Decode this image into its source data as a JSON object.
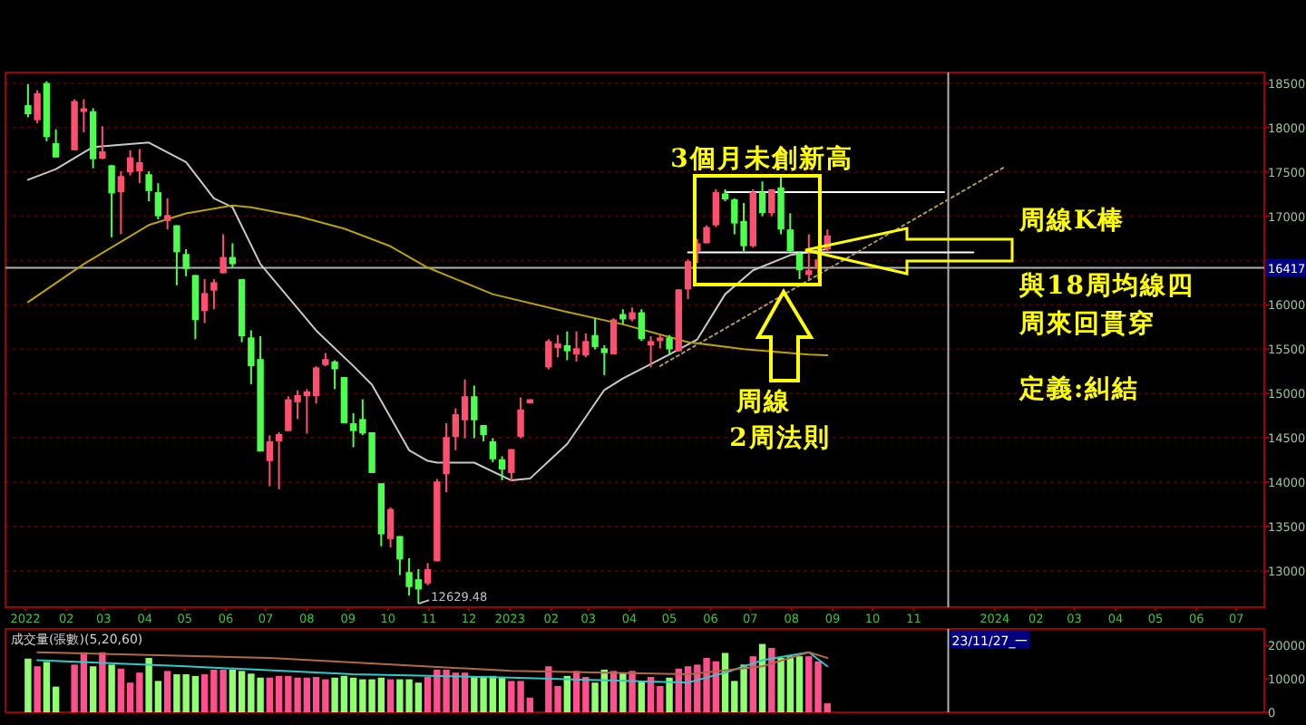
{
  "chart_data": [
    {
      "type": "candlestick",
      "x": [
        "2022-01-03",
        "2022-01-10",
        "2022-01-17",
        "2022-01-24",
        "2022-02-07",
        "2022-02-14",
        "2022-02-21",
        "2022-02-28",
        "2022-03-07",
        "2022-03-14",
        "2022-03-21",
        "2022-03-28",
        "2022-04-04",
        "2022-04-11",
        "2022-04-18",
        "2022-04-25",
        "2022-05-02",
        "2022-05-09",
        "2022-05-16",
        "2022-05-23",
        "2022-05-30",
        "2022-06-06",
        "2022-06-13",
        "2022-06-20",
        "2022-06-27",
        "2022-07-04",
        "2022-07-11",
        "2022-07-18",
        "2022-07-25",
        "2022-08-01",
        "2022-08-08",
        "2022-08-15",
        "2022-08-22",
        "2022-08-29",
        "2022-09-05",
        "2022-09-12",
        "2022-09-19",
        "2022-09-26",
        "2022-10-03",
        "2022-10-10",
        "2022-10-17",
        "2022-10-24",
        "2022-10-31",
        "2022-11-07",
        "2022-11-14",
        "2022-11-21",
        "2022-11-28",
        "2022-12-05",
        "2022-12-12",
        "2022-12-19",
        "2022-12-26",
        "2023-01-02",
        "2023-01-09",
        "2023-01-16",
        "2023-01-30",
        "2023-02-06",
        "2023-02-13",
        "2023-02-20",
        "2023-02-27",
        "2023-03-06",
        "2023-03-13",
        "2023-03-20",
        "2023-03-27",
        "2023-04-03",
        "2023-04-10",
        "2023-04-17",
        "2023-04-24",
        "2023-05-01",
        "2023-05-08",
        "2023-05-15",
        "2023-05-22",
        "2023-05-29",
        "2023-06-05",
        "2023-06-12",
        "2023-06-19",
        "2023-06-26",
        "2023-07-03",
        "2023-07-10",
        "2023-07-17",
        "2023-07-24",
        "2023-07-31",
        "2023-08-07",
        "2023-08-14",
        "2023-08-21",
        "2023-08-28"
      ],
      "ohlc": [
        [
          18251,
          18488,
          18115,
          18149
        ],
        [
          18082,
          18420,
          18048,
          18386
        ],
        [
          18501,
          18521,
          17845,
          17892
        ],
        [
          17824,
          17980,
          17662,
          17662
        ],
        [
          17743,
          18318,
          17743,
          18298
        ],
        [
          18176,
          18318,
          17946,
          18217
        ],
        [
          18183,
          18217,
          17540,
          17642
        ],
        [
          17649,
          18014,
          17642,
          17730
        ],
        [
          17574,
          17574,
          16762,
          17256
        ],
        [
          17270,
          17506,
          16796,
          17452
        ],
        [
          17493,
          17743,
          17459,
          17662
        ],
        [
          17506,
          17757,
          17371,
          17608
        ],
        [
          17473,
          17506,
          17168,
          17283
        ],
        [
          17270,
          17371,
          16965,
          16999
        ],
        [
          16945,
          17202,
          16850,
          17012
        ],
        [
          16897,
          16897,
          16221,
          16593
        ],
        [
          16573,
          16627,
          16322,
          16404
        ],
        [
          16336,
          16336,
          15612,
          15828
        ],
        [
          15930,
          16289,
          15794,
          16133
        ],
        [
          16160,
          16289,
          15950,
          16255
        ],
        [
          16356,
          16796,
          16356,
          16539
        ],
        [
          16539,
          16694,
          16424,
          16458
        ],
        [
          16289,
          16289,
          15578,
          15646
        ],
        [
          15632,
          15713,
          15104,
          15307
        ],
        [
          15388,
          15646,
          14346,
          14346
        ],
        [
          14238,
          14529,
          13954,
          14461
        ],
        [
          14461,
          14563,
          13920,
          14542
        ],
        [
          14576,
          14969,
          14576,
          14935
        ],
        [
          14901,
          15036,
          14712,
          14982
        ],
        [
          14969,
          15050,
          14549,
          15023
        ],
        [
          14969,
          15307,
          14888,
          15294
        ],
        [
          15321,
          15456,
          15307,
          15388
        ],
        [
          15361,
          15375,
          15050,
          15273
        ],
        [
          15185,
          15185,
          14664,
          14664
        ],
        [
          14664,
          14779,
          14394,
          14576
        ],
        [
          14712,
          14935,
          14529,
          14549
        ],
        [
          14563,
          14563,
          14103,
          14103
        ],
        [
          13988,
          13988,
          13277,
          13412
        ],
        [
          13358,
          13717,
          13263,
          13697
        ],
        [
          13392,
          13392,
          12952,
          13128
        ],
        [
          12986,
          13142,
          12722,
          12817
        ],
        [
          12905,
          13020,
          12629.48,
          12790
        ],
        [
          12858,
          13088,
          12837,
          13020
        ],
        [
          13108,
          14035,
          13108,
          14008
        ],
        [
          14089,
          14664,
          13886,
          14509
        ],
        [
          14509,
          14833,
          14360,
          14766
        ],
        [
          14698,
          15158,
          14495,
          14969
        ],
        [
          14969,
          15090,
          14495,
          14698
        ],
        [
          14644,
          14644,
          14461,
          14529
        ],
        [
          14461,
          14495,
          14224,
          14258
        ],
        [
          14258,
          14292,
          14021,
          14143
        ],
        [
          14103,
          14373,
          14008,
          14373
        ],
        [
          14509,
          14955,
          14495,
          14820
        ],
        [
          14888,
          14935,
          14888,
          14935
        ],
        [
          15294,
          15612,
          15273,
          15591
        ],
        [
          15510,
          15659,
          15409,
          15564
        ],
        [
          15544,
          15700,
          15375,
          15476
        ],
        [
          15442,
          15700,
          15361,
          15510
        ],
        [
          15429,
          15679,
          15409,
          15591
        ],
        [
          15659,
          15848,
          15497,
          15524
        ],
        [
          15510,
          15544,
          15206,
          15456
        ],
        [
          15442,
          15848,
          15442,
          15835
        ],
        [
          15896,
          15950,
          15781,
          15835
        ],
        [
          15835,
          15970,
          15815,
          15916
        ],
        [
          15916,
          15950,
          15591,
          15612
        ],
        [
          15544,
          15646,
          15294,
          15591
        ],
        [
          15591,
          15659,
          15510,
          15632
        ],
        [
          15632,
          15659,
          15442,
          15497
        ],
        [
          15476,
          16174,
          15476,
          16174
        ],
        [
          16174,
          16512,
          16065,
          16492
        ],
        [
          16607,
          16742,
          16471,
          16694
        ],
        [
          16694,
          16897,
          16694,
          16877
        ],
        [
          16897,
          17304,
          16877,
          17270
        ],
        [
          17256,
          17304,
          17168,
          17189
        ],
        [
          17189,
          17202,
          16796,
          16917
        ],
        [
          16945,
          17148,
          16606,
          16661
        ],
        [
          16661,
          17304,
          16647,
          17270
        ],
        [
          17270,
          17391,
          16999,
          17033
        ],
        [
          17033,
          17304,
          16999,
          17304
        ],
        [
          17324,
          17439,
          16796,
          16850
        ],
        [
          16850,
          17033,
          16593,
          16606
        ],
        [
          16579,
          16606,
          16289,
          16390
        ],
        [
          16336,
          16796,
          16289,
          16390
        ],
        [
          16404,
          16661,
          16289,
          16512
        ],
        [
          16627,
          16850,
          16606,
          16782
        ]
      ],
      "colors": [
        "#4dff4d",
        "#ff4f6f",
        "#4dff4d",
        "#4dff4d",
        "#ff4f6f",
        "#ff4f6f",
        "#4dff4d",
        "#ff4f6f",
        "#4dff4d",
        "#ff4f6f",
        "#ff4f6f",
        "#ff4f6f",
        "#4dff4d",
        "#4dff4d",
        "#ff4f6f",
        "#4dff4d",
        "#4dff4d",
        "#4dff4d",
        "#ff4f6f",
        "#ff4f6f",
        "#ff4f6f",
        "#4dff4d",
        "#4dff4d",
        "#4dff4d",
        "#4dff4d",
        "#ff4f6f",
        "#ff4f6f",
        "#ff4f6f",
        "#ff4f6f",
        "#ff4f6f",
        "#ff4f6f",
        "#ff4f6f",
        "#4dff4d",
        "#4dff4d",
        "#4dff4d",
        "#4dff4d",
        "#4dff4d",
        "#4dff4d",
        "#ff4f6f",
        "#4dff4d",
        "#4dff4d",
        "#4dff4d",
        "#ff4f6f",
        "#ff4f6f",
        "#ff4f6f",
        "#ff4f6f",
        "#ff4f6f",
        "#4dff4d",
        "#4dff4d",
        "#4dff4d",
        "#4dff4d",
        "#ff4f6f",
        "#ff4f6f",
        "#ff4f6f",
        "#ff4f6f",
        "#ff4f6f",
        "#4dff4d",
        "#ff4f6f",
        "#ff4f6f",
        "#4dff4d",
        "#4dff4d",
        "#ff4f6f",
        "#4dff4d",
        "#ff4f6f",
        "#4dff4d",
        "#ff4f6f",
        "#ff4f6f",
        "#4dff4d",
        "#ff4f6f",
        "#ff4f6f",
        "#ff4f6f",
        "#ff4f6f",
        "#ff4f6f",
        "#4dff4d",
        "#4dff4d",
        "#4dff4d",
        "#ff4f6f",
        "#4dff4d",
        "#ff4f6f",
        "#4dff4d",
        "#4dff4d",
        "#4dff4d",
        "#ff4f6f",
        "#ff4f6f",
        "#ff4f6f"
      ],
      "series": [
        {
          "type": "line",
          "color": "#c8c8c8",
          "x": [
            "2022-01-03",
            "2022-01-24",
            "2022-02-21",
            "2022-04-04",
            "2022-05-02",
            "2022-05-23",
            "2022-06-06",
            "2022-06-27",
            "2022-08-08",
            "2022-09-05",
            "2022-09-19",
            "2022-10-17",
            "2022-10-31",
            "2022-11-07",
            "2022-12-05",
            "2023-01-02",
            "2023-01-16",
            "2023-02-13",
            "2023-03-13",
            "2023-03-27",
            "2023-05-01",
            "2023-05-22",
            "2023-06-12",
            "2023-07-03",
            "2023-07-31",
            "2023-08-28"
          ],
          "values": [
            17410,
            17530,
            17780,
            17830,
            17610,
            17200,
            17100,
            16460,
            15710,
            15310,
            15100,
            14360,
            14240,
            14220,
            14220,
            14020,
            14040,
            14430,
            15040,
            15170,
            15440,
            15610,
            16120,
            16390,
            16560,
            16630
          ]
        },
        {
          "type": "line",
          "color": "#b8a400",
          "x": [
            "2022-01-03",
            "2022-02-14",
            "2022-04-04",
            "2022-05-02",
            "2022-06-06",
            "2022-06-20",
            "2022-07-25",
            "2022-08-29",
            "2022-10-03",
            "2022-10-31",
            "2022-12-19",
            "2023-02-13",
            "2023-03-27",
            "2023-05-15",
            "2023-06-26",
            "2023-08-14",
            "2023-08-28"
          ],
          "values": [
            16030,
            16460,
            16900,
            17030,
            17120,
            17100,
            17000,
            16860,
            16660,
            16420,
            16120,
            15920,
            15780,
            15580,
            15500,
            15440,
            15430
          ]
        },
        {
          "type": "line",
          "color": "#ffffff",
          "x": [
            "2023-06-12",
            "2023-11-24"
          ],
          "values": [
            17270,
            17270
          ]
        },
        {
          "type": "line",
          "color": "#ffffff",
          "x": [
            "2023-05-15",
            "2023-12-16"
          ],
          "values": [
            16590,
            16590
          ]
        },
        {
          "type": "line",
          "color": "#a89860",
          "line_style": "dotted",
          "x": [
            "2023-04-24",
            "2024-01-08"
          ],
          "values": [
            15310,
            17550
          ]
        }
      ],
      "xlim": [
        "2021-12-17",
        "2024-07-22"
      ],
      "xticks": [
        {
          "value": "2022-01-01",
          "label": "2022"
        },
        {
          "value": "2022-02-01",
          "label": "02"
        },
        {
          "value": "2022-03-01",
          "label": "03"
        },
        {
          "value": "2022-04-01",
          "label": "04"
        },
        {
          "value": "2022-05-01",
          "label": "05"
        },
        {
          "value": "2022-06-01",
          "label": "06"
        },
        {
          "value": "2022-07-01",
          "label": "07"
        },
        {
          "value": "2022-08-01",
          "label": "08"
        },
        {
          "value": "2022-09-01",
          "label": "09"
        },
        {
          "value": "2022-10-01",
          "label": "10"
        },
        {
          "value": "2022-11-01",
          "label": "11"
        },
        {
          "value": "2022-12-01",
          "label": "12"
        },
        {
          "value": "2023-01-01",
          "label": "2023"
        },
        {
          "value": "2023-02-01",
          "label": "02"
        },
        {
          "value": "2023-03-01",
          "label": "03"
        },
        {
          "value": "2023-04-01",
          "label": "04"
        },
        {
          "value": "2023-05-01",
          "label": "05"
        },
        {
          "value": "2023-06-01",
          "label": "06"
        },
        {
          "value": "2023-07-01",
          "label": "07"
        },
        {
          "value": "2023-08-01",
          "label": "08"
        },
        {
          "value": "2023-09-01",
          "label": "09"
        },
        {
          "value": "2023-10-01",
          "label": "10"
        },
        {
          "value": "2023-11-01",
          "label": "11"
        },
        {
          "value": "2024-01-01",
          "label": "2024"
        },
        {
          "value": "2024-02-01",
          "label": "02"
        },
        {
          "value": "2024-03-01",
          "label": "03"
        },
        {
          "value": "2024-04-01",
          "label": "04"
        },
        {
          "value": "2024-05-01",
          "label": "05"
        },
        {
          "value": "2024-06-01",
          "label": "06"
        },
        {
          "value": "2024-07-01",
          "label": "07"
        }
      ],
      "ylim": [
        12590,
        18620
      ],
      "yticks": [
        13000,
        13500,
        14000,
        14500,
        15000,
        15500,
        16000,
        {
          "value": 16500,
          "label": null
        },
        17000,
        17500,
        18000,
        18500
      ],
      "tick_labels": "xy",
      "grid": "y",
      "ref_lines": [
        {
          "axis": "y",
          "value": 16417,
          "label": "16417",
          "color": "#b0b0b0"
        },
        {
          "axis": "x",
          "value": "2023-11-27",
          "label": "23/11/27_一",
          "color": "#b0b0b0"
        }
      ],
      "annotations": [
        "3個月未創新高",
        "周線",
        "2周法則",
        "周線K棒",
        "與18周均線四",
        "周來回貫穿",
        "定義:糾結",
        "12629.48"
      ]
    },
    {
      "type": "bar",
      "title": "成交量(張數)(5,20,60)",
      "x": [
        "2022-01-03",
        "2022-01-10",
        "2022-01-17",
        "2022-01-24",
        "2022-02-07",
        "2022-02-14",
        "2022-02-21",
        "2022-02-28",
        "2022-03-07",
        "2022-03-14",
        "2022-03-21",
        "2022-03-28",
        "2022-04-04",
        "2022-04-11",
        "2022-04-18",
        "2022-04-25",
        "2022-05-02",
        "2022-05-09",
        "2022-05-16",
        "2022-05-23",
        "2022-05-30",
        "2022-06-06",
        "2022-06-13",
        "2022-06-20",
        "2022-06-27",
        "2022-07-04",
        "2022-07-11",
        "2022-07-18",
        "2022-07-25",
        "2022-08-01",
        "2022-08-08",
        "2022-08-15",
        "2022-08-22",
        "2022-08-29",
        "2022-09-05",
        "2022-09-12",
        "2022-09-19",
        "2022-09-26",
        "2022-10-03",
        "2022-10-10",
        "2022-10-17",
        "2022-10-24",
        "2022-10-31",
        "2022-11-07",
        "2022-11-14",
        "2022-11-21",
        "2022-11-28",
        "2022-12-05",
        "2022-12-12",
        "2022-12-19",
        "2022-12-26",
        "2023-01-02",
        "2023-01-09",
        "2023-01-16",
        "2023-01-30",
        "2023-02-06",
        "2023-02-13",
        "2023-02-20",
        "2023-02-27",
        "2023-03-06",
        "2023-03-13",
        "2023-03-20",
        "2023-03-27",
        "2023-04-03",
        "2023-04-10",
        "2023-04-17",
        "2023-04-24",
        "2023-05-01",
        "2023-05-08",
        "2023-05-15",
        "2023-05-22",
        "2023-05-29",
        "2023-06-05",
        "2023-06-12",
        "2023-06-19",
        "2023-06-26",
        "2023-07-03",
        "2023-07-10",
        "2023-07-17",
        "2023-07-24",
        "2023-07-31",
        "2023-08-07",
        "2023-08-14",
        "2023-08-21",
        "2023-08-28"
      ],
      "series": [
        {
          "type": "bar",
          "values": [
            16100,
            13800,
            15100,
            7700,
            14300,
            18000,
            13800,
            18000,
            14300,
            13100,
            8900,
            11900,
            16300,
            9400,
            12400,
            11400,
            11400,
            10900,
            11400,
            12800,
            12800,
            12800,
            12400,
            11600,
            10400,
            10400,
            10900,
            10900,
            10400,
            10400,
            10600,
            9900,
            10400,
            10900,
            10400,
            9900,
            9900,
            10400,
            9900,
            9900,
            9900,
            8900,
            10600,
            12800,
            12800,
            11900,
            11900,
            10600,
            10900,
            10900,
            10600,
            9400,
            9400,
            4400,
            13800,
            7900,
            10900,
            12400,
            10600,
            8900,
            12800,
            12400,
            11900,
            12400,
            9400,
            10600,
            7900,
            10400,
            13100,
            13800,
            14300,
            16300,
            15300,
            17800,
            9400,
            14300,
            16800,
            20500,
            19300,
            16300,
            16800,
            16800,
            16800,
            15300,
            2700
          ],
          "colors": [
            "#8fff70",
            "#ff4f8f",
            "#8fff70",
            "#8fff70",
            "#ff4f8f",
            "#ff4f8f",
            "#8fff70",
            "#ff4f8f",
            "#8fff70",
            "#ff4f8f",
            "#ff4f8f",
            "#ff4f8f",
            "#8fff70",
            "#8fff70",
            "#ff4f8f",
            "#8fff70",
            "#8fff70",
            "#8fff70",
            "#ff4f8f",
            "#ff4f8f",
            "#ff4f8f",
            "#8fff70",
            "#8fff70",
            "#8fff70",
            "#8fff70",
            "#ff4f8f",
            "#ff4f8f",
            "#ff4f8f",
            "#ff4f8f",
            "#ff4f8f",
            "#ff4f8f",
            "#ff4f8f",
            "#8fff70",
            "#8fff70",
            "#8fff70",
            "#8fff70",
            "#8fff70",
            "#8fff70",
            "#ff4f8f",
            "#8fff70",
            "#8fff70",
            "#8fff70",
            "#ff4f8f",
            "#ff4f8f",
            "#ff4f8f",
            "#ff4f8f",
            "#ff4f8f",
            "#8fff70",
            "#8fff70",
            "#8fff70",
            "#8fff70",
            "#ff4f8f",
            "#ff4f8f",
            "#ff4f8f",
            "#ff4f8f",
            "#ff4f8f",
            "#8fff70",
            "#ff4f8f",
            "#ff4f8f",
            "#8fff70",
            "#8fff70",
            "#ff4f8f",
            "#8fff70",
            "#ff4f8f",
            "#8fff70",
            "#ff4f8f",
            "#ff4f8f",
            "#8fff70",
            "#ff4f8f",
            "#ff4f8f",
            "#ff4f8f",
            "#ff4f8f",
            "#ff4f8f",
            "#8fff70",
            "#8fff70",
            "#8fff70",
            "#ff4f8f",
            "#8fff70",
            "#ff4f8f",
            "#8fff70",
            "#8fff70",
            "#8fff70",
            "#ff4f8f",
            "#ff4f8f",
            "#ff4f8f"
          ]
        },
        {
          "type": "line",
          "color": "#30c8c8",
          "x": [
            "2022-01-10",
            "2022-05-02",
            "2022-09-05",
            "2023-01-02",
            "2023-05-15",
            "2023-06-12",
            "2023-07-10",
            "2023-08-14",
            "2023-08-28"
          ],
          "values": [
            15600,
            13800,
            11400,
            10400,
            8900,
            11900,
            15600,
            18000,
            13800
          ]
        },
        {
          "type": "line",
          "color": "#b06848",
          "x": [
            "2022-01-10",
            "2022-07-04",
            "2023-01-02",
            "2023-05-15",
            "2023-07-10",
            "2023-08-14",
            "2023-08-28"
          ],
          "values": [
            18000,
            16300,
            12400,
            11400,
            13800,
            18000,
            16300
          ]
        }
      ],
      "xlim": [
        "2021-12-17",
        "2024-07-22"
      ],
      "ylim": [
        0,
        25000
      ],
      "yticks": [
        0,
        10000,
        20000
      ],
      "tick_labels": "y",
      "ref_lines": [
        {
          "axis": "x",
          "value": "2023-11-27",
          "color": "#b0b0b0"
        }
      ]
    }
  ]
}
